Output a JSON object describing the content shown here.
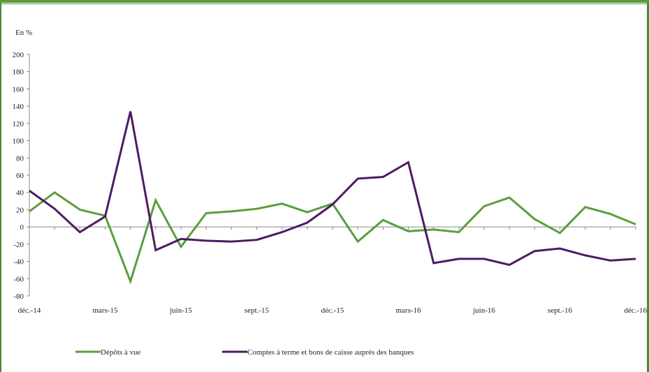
{
  "chart_data": {
    "type": "line",
    "unit_label": "En %",
    "ylim": [
      -80,
      200
    ],
    "y_ticks": [
      -80,
      -60,
      -40,
      -20,
      0,
      20,
      40,
      60,
      80,
      100,
      120,
      140,
      160,
      180,
      200
    ],
    "x_tick_labels": [
      "déc.-14",
      "mars-15",
      "juin-15",
      "sept.-15",
      "déc.-15",
      "mars-16",
      "juin-16",
      "sept.-16",
      "déc.-16"
    ],
    "x": [
      "déc.-14",
      "janv.-15",
      "févr.-15",
      "mars-15",
      "avr.-15",
      "mai-15",
      "juin-15",
      "juil.-15",
      "août-15",
      "sept.-15",
      "oct.-15",
      "nov.-15",
      "déc.-15",
      "janv.-16",
      "févr.-16",
      "mars-16",
      "avr.-16",
      "mai-16",
      "juin-16",
      "juil.-16",
      "août-16",
      "sept.-16",
      "oct.-16",
      "nov.-16",
      "déc.-16"
    ],
    "series": [
      {
        "name": "Dépôts à vue",
        "color": "#5a9e3a",
        "values": [
          18,
          40,
          20,
          13,
          -63,
          31,
          -23,
          16,
          18,
          21,
          27,
          17,
          27,
          -17,
          8,
          -5,
          -3,
          -6,
          24,
          34,
          9,
          -7,
          23,
          15,
          3
        ]
      },
      {
        "name": "Comptes à terme et bons de caisse auprés des banques",
        "color": "#4e1a63",
        "values": [
          42,
          21,
          -6,
          12,
          134,
          -27,
          -14,
          -16,
          -17,
          -15,
          -6,
          5,
          26,
          56,
          58,
          75,
          -42,
          -37,
          -37,
          -44,
          -28,
          -25,
          -33,
          -39,
          -37
        ]
      }
    ],
    "grid": false,
    "legend_position": "bottom"
  }
}
